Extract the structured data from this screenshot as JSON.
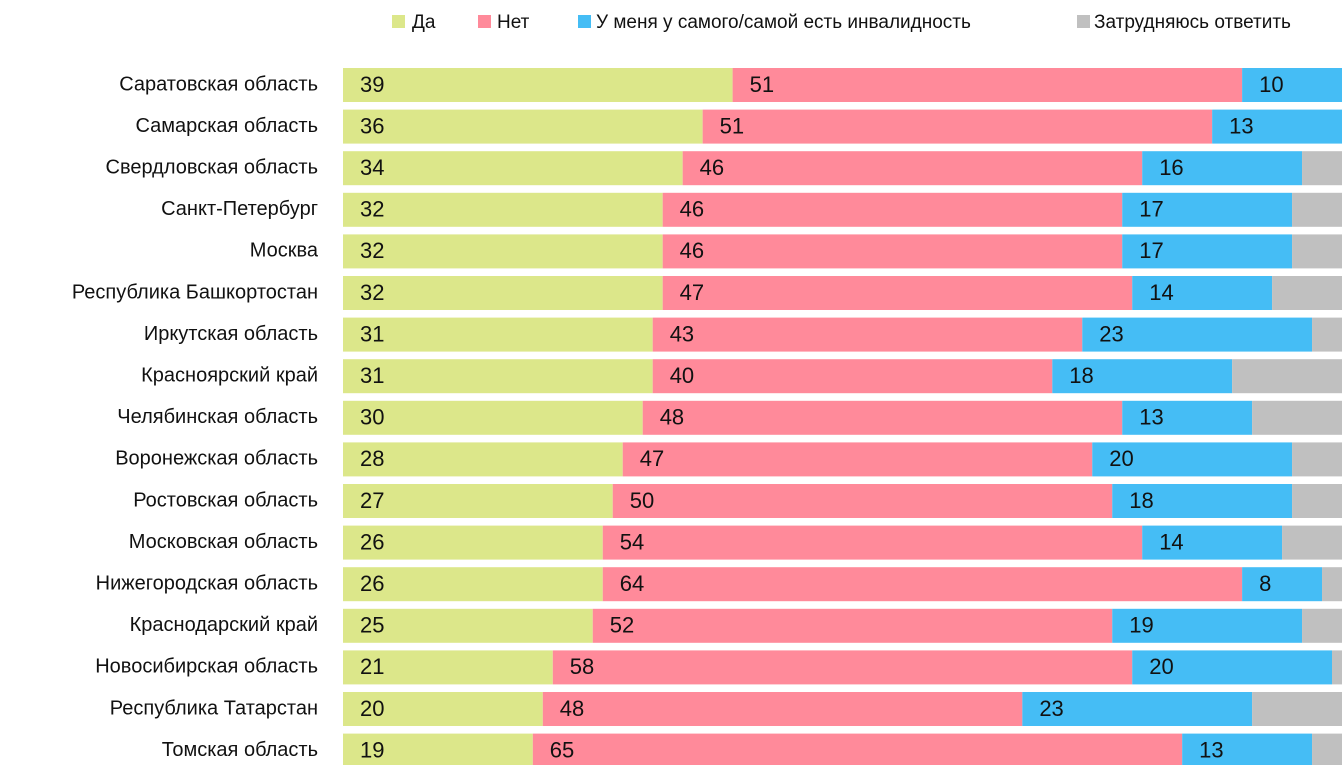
{
  "chart_data": {
    "type": "stacked-bar-horizontal",
    "categories": [
      "Саратовская область",
      "Самарская область",
      "Свердловская область",
      "Санкт-Петербург",
      "Москва",
      "Республика Башкортостан",
      "Иркутская область",
      "Красноярский край",
      "Челябинская область",
      "Воронежская область",
      "Ростовская область",
      "Московская область",
      "Нижегородская область",
      "Краснодарский край",
      "Новосибирская область",
      "Республика Татарстан",
      "Томская область"
    ],
    "series": [
      {
        "name": "Да",
        "color": "#dce78a",
        "values": [
          39,
          36,
          34,
          32,
          32,
          32,
          31,
          31,
          30,
          28,
          27,
          26,
          26,
          25,
          21,
          20,
          19
        ],
        "labeled": true
      },
      {
        "name": "Нет",
        "color": "#ff8a9a",
        "values": [
          51,
          51,
          46,
          46,
          46,
          47,
          43,
          40,
          48,
          47,
          50,
          54,
          64,
          52,
          58,
          48,
          65
        ],
        "labeled": true
      },
      {
        "name": "У меня у самого/самой есть инвалидность",
        "color": "#45bdf5",
        "values": [
          10,
          13,
          16,
          17,
          17,
          14,
          23,
          18,
          13,
          20,
          18,
          14,
          8,
          19,
          20,
          23,
          13
        ],
        "labeled": true
      },
      {
        "name": "Затрудняюсь ответить",
        "color": "#c0c0c0",
        "values": [
          0,
          0,
          4,
          5,
          5,
          7,
          3,
          11,
          9,
          5,
          5,
          6,
          2,
          4,
          1,
          9,
          3
        ],
        "labeled": false
      }
    ],
    "xlim": [
      0,
      100
    ]
  }
}
